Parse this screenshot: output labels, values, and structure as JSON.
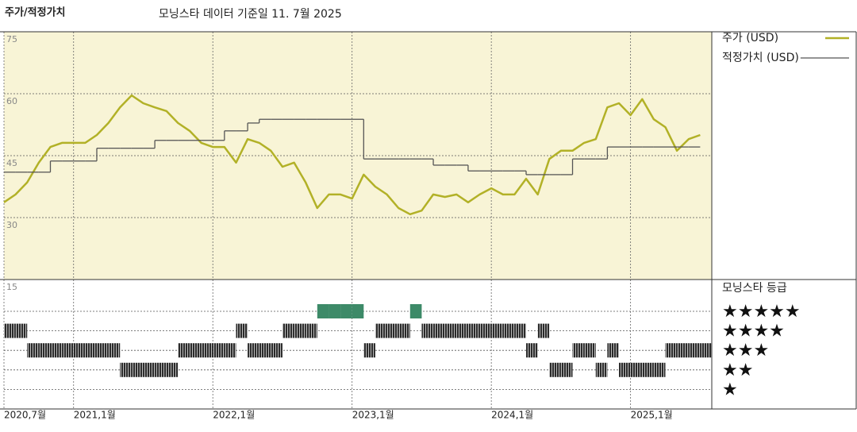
{
  "chart_data": [
    {
      "type": "line",
      "title": "주가/적정가치",
      "subtitle": "모닝스타 데이터 기준일 11. 7월 2025",
      "x": [
        "2020-07",
        "2020-08",
        "2020-09",
        "2020-10",
        "2020-11",
        "2020-12",
        "2021-01",
        "2021-02",
        "2021-03",
        "2021-04",
        "2021-05",
        "2021-06",
        "2021-07",
        "2021-08",
        "2021-09",
        "2021-10",
        "2021-11",
        "2021-12",
        "2022-01",
        "2022-02",
        "2022-03",
        "2022-04",
        "2022-05",
        "2022-06",
        "2022-07",
        "2022-08",
        "2022-09",
        "2022-10",
        "2022-11",
        "2022-12",
        "2023-01",
        "2023-02",
        "2023-03",
        "2023-04",
        "2023-05",
        "2023-06",
        "2023-07",
        "2023-08",
        "2023-09",
        "2023-10",
        "2023-11",
        "2023-12",
        "2024-01",
        "2024-02",
        "2024-03",
        "2024-04",
        "2024-05",
        "2024-06",
        "2024-07",
        "2024-08",
        "2024-09",
        "2024-10",
        "2024-11",
        "2024-12",
        "2025-01",
        "2025-02",
        "2025-03",
        "2025-04",
        "2025-05",
        "2025-06",
        "2025-07"
      ],
      "xlim": [
        "2020-07",
        "2025-08"
      ],
      "xticks": [
        {
          "value": "2020-07",
          "label": "2020,7월"
        },
        {
          "value": "2021-01",
          "label": "2021,1월"
        },
        {
          "value": "2022-01",
          "label": "2022,1월"
        },
        {
          "value": "2023-01",
          "label": "2023,1월"
        },
        {
          "value": "2024-01",
          "label": "2024,1월"
        },
        {
          "value": "2025-01",
          "label": "2025,1월"
        }
      ],
      "ylim": [
        15,
        75
      ],
      "yticks": [
        15,
        30,
        45,
        60,
        75
      ],
      "background": "#f8f4d6",
      "series": [
        {
          "name": "주가 (USD)",
          "color": "#b2b127",
          "values": [
            33.7,
            35.6,
            38.5,
            43.3,
            47.1,
            48.1,
            48.1,
            48.1,
            50.0,
            52.9,
            56.7,
            59.6,
            57.7,
            56.7,
            55.8,
            52.9,
            51.0,
            48.1,
            47.1,
            47.1,
            43.3,
            49.0,
            48.1,
            46.2,
            42.3,
            43.3,
            38.5,
            32.3,
            35.6,
            35.6,
            34.6,
            40.4,
            37.5,
            35.6,
            32.3,
            30.8,
            31.7,
            35.6,
            35.0,
            35.6,
            33.7,
            35.6,
            37.1,
            35.6,
            35.6,
            39.4,
            35.6,
            44.2,
            46.2,
            46.2,
            48.1,
            49.0,
            56.7,
            57.7,
            54.8,
            58.7,
            53.8,
            51.9,
            46.2,
            49.0,
            50.0
          ]
        },
        {
          "name": "적정가치 (USD)",
          "color": "#555555",
          "step": true,
          "values": [
            41.0,
            41.0,
            41.0,
            41.0,
            43.7,
            43.7,
            43.7,
            43.7,
            46.8,
            46.8,
            46.8,
            46.8,
            46.8,
            48.7,
            48.7,
            48.7,
            48.7,
            48.7,
            48.7,
            51.0,
            51.0,
            52.9,
            53.8,
            53.8,
            53.8,
            53.8,
            53.8,
            53.8,
            53.8,
            53.8,
            53.8,
            44.2,
            44.2,
            44.2,
            44.2,
            44.2,
            44.2,
            42.7,
            42.7,
            42.7,
            41.3,
            41.3,
            41.3,
            41.3,
            41.3,
            40.4,
            40.4,
            40.4,
            40.4,
            44.2,
            44.2,
            44.2,
            47.1,
            47.1,
            47.1,
            47.1,
            47.1,
            47.1,
            47.1,
            47.1,
            47.1
          ]
        }
      ]
    },
    {
      "type": "rating",
      "title": "모닝스타 등급",
      "color": "#333333",
      "top_color": "#3d8a68",
      "yticks": [
        {
          "value": 5,
          "label": "★★★★★"
        },
        {
          "value": 4,
          "label": "★★★★"
        },
        {
          "value": 3,
          "label": "★★★"
        },
        {
          "value": 2,
          "label": "★★"
        },
        {
          "value": 1,
          "label": "★"
        }
      ],
      "values": [
        4,
        4,
        3,
        3,
        3,
        3,
        3,
        3,
        3,
        3,
        2,
        2,
        2,
        2,
        2,
        3,
        3,
        3,
        3,
        3,
        4,
        3,
        3,
        3,
        4,
        4,
        4,
        5,
        5,
        5,
        5,
        3,
        4,
        4,
        4,
        5,
        4,
        4,
        4,
        4,
        4,
        4,
        4,
        4,
        4,
        3,
        4,
        2,
        2,
        3,
        3,
        2,
        3,
        2,
        2,
        2,
        2,
        3,
        3,
        3,
        3
      ]
    }
  ]
}
